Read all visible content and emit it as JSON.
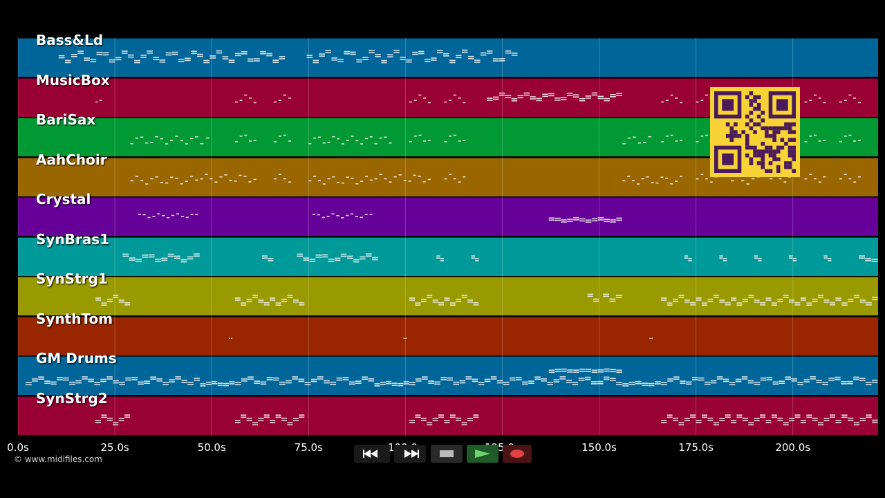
{
  "tracks": [
    {
      "name": "Bass&Ld",
      "color": "#006699",
      "notes": [
        [
          10.5,
          69.0,
          0.3,
          0.55,
          true
        ],
        [
          74.5,
          129.0,
          0.28,
          0.55,
          true
        ]
      ]
    },
    {
      "name": "MusicBox",
      "color": "#990033",
      "notes": [
        [
          20,
          22,
          0.4,
          0.6,
          false
        ],
        [
          56,
          62,
          0.4,
          0.6,
          false
        ],
        [
          66,
          71,
          0.4,
          0.6,
          false
        ],
        [
          101,
          107,
          0.4,
          0.6,
          false
        ],
        [
          110,
          116,
          0.4,
          0.6,
          false
        ],
        [
          121,
          156,
          0.35,
          0.5,
          true
        ],
        [
          166,
          172,
          0.4,
          0.6,
          false
        ],
        [
          175,
          181,
          0.4,
          0.6,
          false
        ],
        [
          203,
          209,
          0.4,
          0.6,
          false
        ],
        [
          212,
          218,
          0.4,
          0.6,
          false
        ]
      ]
    },
    {
      "name": "BariSax",
      "color": "#009933",
      "notes": [
        [
          29,
          47,
          0.45,
          0.65,
          false
        ],
        [
          47,
          50,
          0.45,
          0.65,
          false
        ],
        [
          56,
          62,
          0.4,
          0.6,
          false
        ],
        [
          66,
          71,
          0.4,
          0.6,
          false
        ],
        [
          75,
          92,
          0.45,
          0.65,
          false
        ],
        [
          92,
          97,
          0.45,
          0.65,
          false
        ],
        [
          101,
          107,
          0.4,
          0.6,
          false
        ],
        [
          110,
          116,
          0.4,
          0.6,
          false
        ],
        [
          156,
          164,
          0.45,
          0.65,
          false
        ],
        [
          166,
          172,
          0.4,
          0.6,
          false
        ],
        [
          175,
          181,
          0.4,
          0.6,
          false
        ],
        [
          184,
          192,
          0.45,
          0.65,
          false
        ],
        [
          203,
          209,
          0.4,
          0.6,
          false
        ],
        [
          212,
          218,
          0.4,
          0.6,
          false
        ]
      ]
    },
    {
      "name": "AahChoir",
      "color": "#996600",
      "notes": [
        [
          29,
          47,
          0.45,
          0.65,
          false
        ],
        [
          47,
          62,
          0.4,
          0.6,
          false
        ],
        [
          66,
          71,
          0.4,
          0.6,
          false
        ],
        [
          75,
          92,
          0.45,
          0.65,
          false
        ],
        [
          92,
          107,
          0.4,
          0.6,
          false
        ],
        [
          110,
          116,
          0.4,
          0.6,
          false
        ],
        [
          156,
          172,
          0.45,
          0.65,
          false
        ],
        [
          175,
          181,
          0.4,
          0.6,
          false
        ],
        [
          184,
          192,
          0.45,
          0.65,
          false
        ],
        [
          194,
          200,
          0.4,
          0.6,
          false
        ],
        [
          203,
          209,
          0.4,
          0.6,
          false
        ],
        [
          212,
          218,
          0.4,
          0.6,
          false
        ]
      ]
    },
    {
      "name": "Crystal",
      "color": "#660099",
      "notes": [
        [
          31,
          47,
          0.4,
          0.5,
          false
        ],
        [
          76,
          92,
          0.4,
          0.5,
          false
        ],
        [
          137,
          156,
          0.5,
          0.56,
          true
        ]
      ]
    },
    {
      "name": "SynBras1",
      "color": "#009999",
      "notes": [
        [
          27,
          47,
          0.4,
          0.55,
          true
        ],
        [
          63,
          66,
          0.45,
          0.55,
          true
        ],
        [
          72,
          93,
          0.4,
          0.55,
          true
        ],
        [
          108,
          110,
          0.45,
          0.55,
          true
        ],
        [
          117,
          119,
          0.45,
          0.55,
          true
        ],
        [
          172,
          174,
          0.45,
          0.55,
          true
        ],
        [
          181,
          183,
          0.45,
          0.55,
          true
        ],
        [
          190,
          192,
          0.45,
          0.55,
          true
        ],
        [
          199,
          201,
          0.45,
          0.55,
          true
        ],
        [
          208,
          210,
          0.45,
          0.55,
          true
        ],
        [
          217,
          222,
          0.45,
          0.55,
          true
        ]
      ]
    },
    {
      "name": "SynStrg1",
      "color": "#999900",
      "notes": [
        [
          20,
          29,
          0.45,
          0.65,
          true
        ],
        [
          56,
          65,
          0.45,
          0.65,
          true
        ],
        [
          65,
          74,
          0.45,
          0.65,
          true
        ],
        [
          101,
          110,
          0.45,
          0.65,
          true
        ],
        [
          110,
          119,
          0.45,
          0.65,
          true
        ],
        [
          147,
          150,
          0.35,
          0.55,
          true
        ],
        [
          151,
          156,
          0.35,
          0.55,
          true
        ],
        [
          166,
          175,
          0.45,
          0.65,
          true
        ],
        [
          175,
          184,
          0.45,
          0.65,
          true
        ],
        [
          184,
          193,
          0.45,
          0.65,
          true
        ],
        [
          193,
          202,
          0.45,
          0.65,
          true
        ],
        [
          202,
          211,
          0.45,
          0.65,
          true
        ],
        [
          211,
          222,
          0.45,
          0.65,
          true
        ]
      ]
    },
    {
      "name": "SynthTom",
      "color": "#992600",
      "notes": [
        [
          54.5,
          55.5,
          0.4,
          0.55,
          false
        ],
        [
          99.5,
          100.5,
          0.4,
          0.55,
          false
        ],
        [
          163,
          164,
          0.4,
          0.55,
          false
        ]
      ]
    },
    {
      "name": "GM Drums",
      "color": "#006699",
      "notes": [
        [
          2,
          47,
          0.5,
          0.65,
          true
        ],
        [
          47,
          56,
          0.62,
          0.68,
          true
        ],
        [
          56,
          92,
          0.5,
          0.65,
          true
        ],
        [
          92,
          101,
          0.62,
          0.68,
          true
        ],
        [
          101,
          156,
          0.5,
          0.65,
          true
        ],
        [
          137,
          156,
          0.3,
          0.33,
          true
        ],
        [
          156,
          166,
          0.62,
          0.68,
          true
        ],
        [
          166,
          222,
          0.5,
          0.65,
          true
        ]
      ]
    },
    {
      "name": "SynStrg2",
      "color": "#990033",
      "notes": [
        [
          20,
          29,
          0.45,
          0.65,
          true
        ],
        [
          56,
          65,
          0.45,
          0.65,
          true
        ],
        [
          65,
          74,
          0.45,
          0.65,
          true
        ],
        [
          101,
          110,
          0.45,
          0.65,
          true
        ],
        [
          110,
          119,
          0.45,
          0.65,
          true
        ],
        [
          166,
          175,
          0.45,
          0.65,
          true
        ],
        [
          175,
          184,
          0.45,
          0.65,
          true
        ],
        [
          184,
          193,
          0.45,
          0.65,
          true
        ],
        [
          193,
          202,
          0.45,
          0.65,
          true
        ],
        [
          202,
          211,
          0.45,
          0.65,
          true
        ],
        [
          211,
          222,
          0.45,
          0.65,
          true
        ]
      ]
    }
  ],
  "axis": {
    "unit": "s",
    "range": [
      0,
      222
    ],
    "ticks": [
      "0.0s",
      "25.0s",
      "50.0s",
      "75.0s",
      "100.0s",
      "125.0s",
      "150.0s",
      "175.0s",
      "200.0s"
    ],
    "tick_values": [
      0,
      25,
      50,
      75,
      100,
      125,
      150,
      175,
      200
    ]
  },
  "copyright": "© www.midifiles.com",
  "transport": {
    "rewind_icon": "rewind-icon",
    "fast_forward_icon": "fast-forward-icon",
    "stop_icon": "stop-icon",
    "play_icon": "play-icon",
    "record_icon": "record-icon",
    "play_color": "#2e8b3a",
    "record_color": "#c83434"
  },
  "qr_colors": {
    "background": "#f7d335",
    "modules": "#4a1a5a"
  }
}
